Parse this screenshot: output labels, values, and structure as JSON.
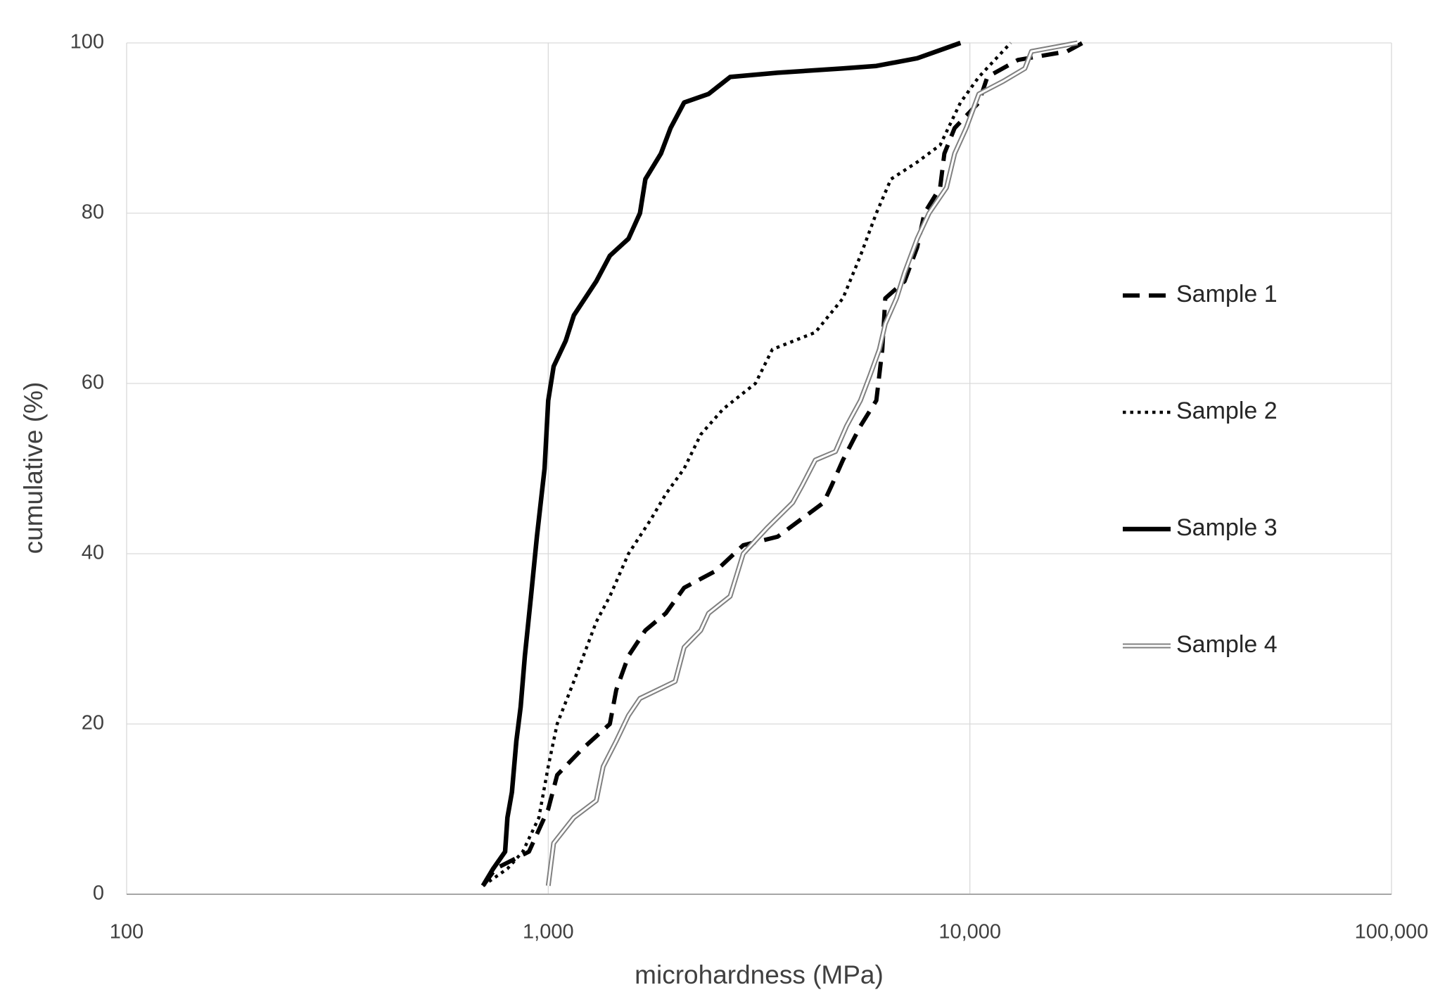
{
  "chart_data": {
    "type": "line",
    "x_label": "microhardness (MPa)",
    "y_label": "cumulative (%)",
    "x_log": true,
    "grid": true,
    "legend": "right",
    "xlim": [
      100,
      100000
    ],
    "xticks": [
      100,
      {
        "value": 1000,
        "label": "1,000"
      },
      {
        "value": 10000,
        "label": "10,000"
      },
      {
        "value": 100000,
        "label": "100,000"
      }
    ],
    "ylim": [
      0,
      100
    ],
    "yticks": [
      0,
      20,
      40,
      60,
      80,
      100
    ],
    "series": [
      {
        "name": "Sample 1",
        "color": "#000000",
        "style": "dashed",
        "x": [
          700,
          750,
          900,
          1000,
          1050,
          1200,
          1400,
          1450,
          1550,
          1700,
          1900,
          2100,
          2500,
          2900,
          3500,
          4500,
          4700,
          5000,
          5500,
          6000,
          6200,
          6300,
          7000,
          7500,
          7800,
          8500,
          8700,
          9200,
          10500,
          11000,
          13000,
          17000,
          18500
        ],
        "values": [
          1,
          3,
          5,
          10,
          14,
          17,
          20,
          24,
          28,
          31,
          33,
          36,
          38,
          41,
          42,
          46,
          48,
          51,
          55,
          58,
          64,
          70,
          72,
          76,
          80,
          83,
          87,
          90,
          93,
          96,
          98,
          99,
          100
        ]
      },
      {
        "name": "Sample 2",
        "color": "#000000",
        "style": "dotted",
        "x": [
          700,
          800,
          870,
          950,
          1000,
          1050,
          1150,
          1300,
          1400,
          1550,
          1750,
          1900,
          2100,
          2300,
          2600,
          3100,
          3400,
          4300,
          5000,
          5500,
          6000,
          6500,
          7500,
          8500,
          9500,
          10500,
          12500
        ],
        "values": [
          1,
          3,
          5,
          9,
          15,
          20,
          25,
          32,
          35,
          40,
          44,
          47,
          50,
          54,
          57,
          60,
          64,
          66,
          70,
          75,
          80,
          84,
          86,
          88,
          93,
          96,
          100
        ]
      },
      {
        "name": "Sample 3",
        "color": "#000000",
        "style": "solid",
        "x": [
          700,
          740,
          790,
          800,
          820,
          840,
          860,
          880,
          910,
          940,
          980,
          1000,
          1030,
          1100,
          1150,
          1300,
          1400,
          1550,
          1650,
          1700,
          1850,
          1950,
          2100,
          2400,
          2700,
          3500,
          5000,
          6000,
          7500,
          9500
        ],
        "values": [
          1,
          3,
          5,
          9,
          12,
          18,
          22,
          28,
          35,
          42,
          50,
          58,
          62,
          65,
          68,
          72,
          75,
          77,
          80,
          84,
          87,
          90,
          93,
          94,
          96,
          96.5,
          97,
          97.3,
          98.2,
          100
        ]
      },
      {
        "name": "Sample 4",
        "color": "#808080",
        "style": "double",
        "x": [
          1000,
          1030,
          1150,
          1300,
          1350,
          1450,
          1550,
          1650,
          2000,
          2100,
          2300,
          2400,
          2700,
          2900,
          3300,
          3800,
          4000,
          4300,
          4800,
          5100,
          5500,
          5800,
          6100,
          6300,
          6700,
          7000,
          7500,
          8000,
          8800,
          9200,
          9800,
          10500,
          12000,
          13500,
          14000,
          18000
        ],
        "values": [
          1,
          6,
          9,
          11,
          15,
          18,
          21,
          23,
          25,
          29,
          31,
          33,
          35,
          40,
          43,
          46,
          48,
          51,
          52,
          55,
          58,
          61,
          64,
          67,
          70,
          73,
          77,
          80,
          83,
          87,
          90,
          94,
          95.5,
          97,
          99,
          100
        ]
      }
    ]
  }
}
